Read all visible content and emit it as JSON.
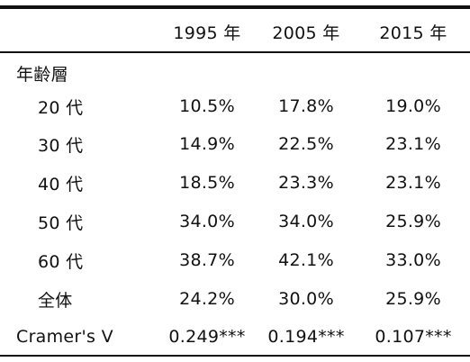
{
  "table": {
    "columns": [
      "1995 年",
      "2005 年",
      "2015 年"
    ],
    "group_label": "年齢層",
    "rows": [
      {
        "label": "20 代",
        "values": [
          "10.5%",
          "17.8%",
          "19.0%"
        ]
      },
      {
        "label": "30 代",
        "values": [
          "14.9%",
          "22.5%",
          "23.1%"
        ]
      },
      {
        "label": "40 代",
        "values": [
          "18.5%",
          "23.3%",
          "23.1%"
        ]
      },
      {
        "label": "50 代",
        "values": [
          "34.0%",
          "34.0%",
          "25.9%"
        ]
      },
      {
        "label": "60 代",
        "values": [
          "38.7%",
          "42.1%",
          "33.0%"
        ]
      },
      {
        "label": "全体",
        "values": [
          "24.2%",
          "30.0%",
          "25.9%"
        ]
      }
    ],
    "summary": {
      "label": "Cramer's V",
      "values": [
        "0.249***",
        "0.194***",
        "0.107***"
      ]
    }
  }
}
